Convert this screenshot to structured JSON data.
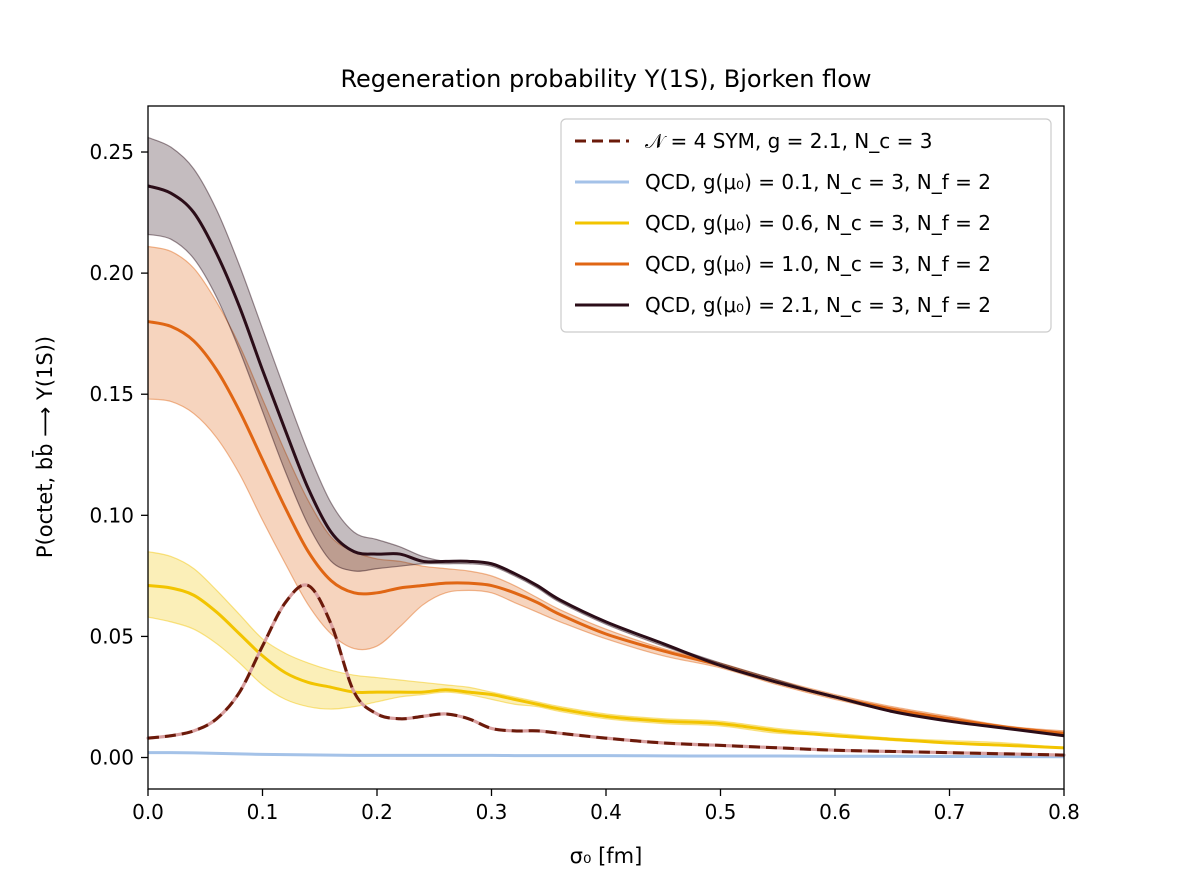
{
  "chart_data": {
    "type": "line",
    "title": "Regeneration probability Υ(1S), Bjorken flow",
    "xlabel": "σ₀ [fm]",
    "ylabel": "P(octet, bb̄ ⟶ Υ(1S))",
    "xlim": [
      0.0,
      0.8
    ],
    "ylim": [
      -0.013,
      0.269
    ],
    "xticks": [
      "0.0",
      "0.1",
      "0.2",
      "0.3",
      "0.4",
      "0.5",
      "0.6",
      "0.7",
      "0.8"
    ],
    "yticks": [
      "0.00",
      "0.05",
      "0.10",
      "0.15",
      "0.20",
      "0.25"
    ],
    "grid": false,
    "legend_position": "top-right",
    "x": [
      0.0,
      0.02,
      0.04,
      0.06,
      0.08,
      0.1,
      0.12,
      0.14,
      0.16,
      0.18,
      0.2,
      0.22,
      0.24,
      0.26,
      0.28,
      0.3,
      0.32,
      0.34,
      0.36,
      0.4,
      0.45,
      0.5,
      0.55,
      0.6,
      0.65,
      0.7,
      0.75,
      0.8
    ],
    "series": [
      {
        "name": "𝒩 = 4 SYM, g = 2.1, N_c = 3",
        "color": "#6b1a0a",
        "dashed": true,
        "values": [
          0.008,
          0.009,
          0.011,
          0.016,
          0.027,
          0.046,
          0.064,
          0.071,
          0.055,
          0.027,
          0.018,
          0.016,
          0.017,
          0.018,
          0.016,
          0.012,
          0.011,
          0.011,
          0.01,
          0.008,
          0.006,
          0.005,
          0.004,
          0.003,
          0.0025,
          0.002,
          0.0015,
          0.001
        ]
      },
      {
        "name": "QCD, g(μ₀) = 0.1, N_c = 3, N_f = 2",
        "color": "#a4c2e8",
        "dashed": false,
        "values": [
          0.002,
          0.002,
          0.0019,
          0.0017,
          0.0015,
          0.0013,
          0.0012,
          0.0011,
          0.001,
          0.0009,
          0.0009,
          0.0009,
          0.0009,
          0.0009,
          0.0009,
          0.0009,
          0.0008,
          0.0008,
          0.0008,
          0.0008,
          0.0007,
          0.0006,
          0.0006,
          0.0005,
          0.0005,
          0.0004,
          0.0004,
          0.0003
        ]
      },
      {
        "name": "QCD, g(μ₀) = 0.6, N_c = 3, N_f = 2",
        "color": "#f2c400",
        "dashed": false,
        "band_lower": [
          0.058,
          0.056,
          0.053,
          0.047,
          0.039,
          0.03,
          0.024,
          0.021,
          0.02,
          0.021,
          0.023,
          0.025,
          0.026,
          0.027,
          0.026,
          0.024,
          0.022,
          0.021,
          0.019,
          0.016,
          0.014,
          0.013,
          0.01,
          0.009,
          0.007,
          0.006,
          0.005,
          0.004
        ],
        "band_upper": [
          0.085,
          0.083,
          0.078,
          0.069,
          0.059,
          0.049,
          0.043,
          0.039,
          0.036,
          0.034,
          0.033,
          0.032,
          0.031,
          0.03,
          0.029,
          0.027,
          0.025,
          0.023,
          0.021,
          0.018,
          0.016,
          0.015,
          0.012,
          0.01,
          0.008,
          0.007,
          0.006,
          0.004
        ],
        "values": [
          0.071,
          0.07,
          0.067,
          0.06,
          0.051,
          0.042,
          0.035,
          0.031,
          0.029,
          0.027,
          0.027,
          0.027,
          0.027,
          0.028,
          0.027,
          0.026,
          0.024,
          0.022,
          0.02,
          0.017,
          0.015,
          0.014,
          0.011,
          0.009,
          0.0075,
          0.006,
          0.005,
          0.004
        ]
      },
      {
        "name": "QCD, g(μ₀) = 1.0, N_c = 3, N_f = 2",
        "color": "#e06614",
        "dashed": false,
        "band_lower": [
          0.148,
          0.147,
          0.142,
          0.132,
          0.117,
          0.098,
          0.08,
          0.063,
          0.051,
          0.045,
          0.046,
          0.054,
          0.063,
          0.068,
          0.069,
          0.068,
          0.064,
          0.06,
          0.056,
          0.049,
          0.042,
          0.037,
          0.03,
          0.024,
          0.019,
          0.015,
          0.012,
          0.009
        ],
        "band_upper": [
          0.211,
          0.209,
          0.202,
          0.188,
          0.17,
          0.148,
          0.126,
          0.106,
          0.091,
          0.085,
          0.082,
          0.081,
          0.079,
          0.078,
          0.077,
          0.075,
          0.071,
          0.066,
          0.061,
          0.053,
          0.045,
          0.039,
          0.032,
          0.026,
          0.021,
          0.017,
          0.013,
          0.011
        ],
        "values": [
          0.18,
          0.178,
          0.172,
          0.16,
          0.143,
          0.123,
          0.103,
          0.085,
          0.073,
          0.068,
          0.068,
          0.07,
          0.071,
          0.072,
          0.072,
          0.071,
          0.068,
          0.064,
          0.059,
          0.051,
          0.044,
          0.038,
          0.031,
          0.025,
          0.02,
          0.016,
          0.0125,
          0.01
        ]
      },
      {
        "name": "QCD, g(μ₀) = 2.1, N_c = 3, N_f = 2",
        "color": "#2b0d18",
        "dashed": false,
        "band_lower": [
          0.216,
          0.214,
          0.206,
          0.19,
          0.168,
          0.143,
          0.118,
          0.096,
          0.081,
          0.077,
          0.078,
          0.079,
          0.08,
          0.08,
          0.08,
          0.079,
          0.075,
          0.07,
          0.064,
          0.055,
          0.046,
          0.038,
          0.031,
          0.025,
          0.019,
          0.015,
          0.012,
          0.009
        ],
        "band_upper": [
          0.256,
          0.252,
          0.243,
          0.226,
          0.203,
          0.177,
          0.151,
          0.126,
          0.105,
          0.093,
          0.09,
          0.087,
          0.083,
          0.081,
          0.081,
          0.08,
          0.076,
          0.071,
          0.065,
          0.056,
          0.047,
          0.039,
          0.032,
          0.025,
          0.02,
          0.015,
          0.012,
          0.009
        ],
        "values": [
          0.236,
          0.233,
          0.225,
          0.208,
          0.186,
          0.16,
          0.135,
          0.111,
          0.093,
          0.085,
          0.084,
          0.084,
          0.081,
          0.081,
          0.081,
          0.08,
          0.076,
          0.071,
          0.065,
          0.056,
          0.047,
          0.038,
          0.031,
          0.025,
          0.019,
          0.015,
          0.012,
          0.009
        ]
      }
    ]
  }
}
